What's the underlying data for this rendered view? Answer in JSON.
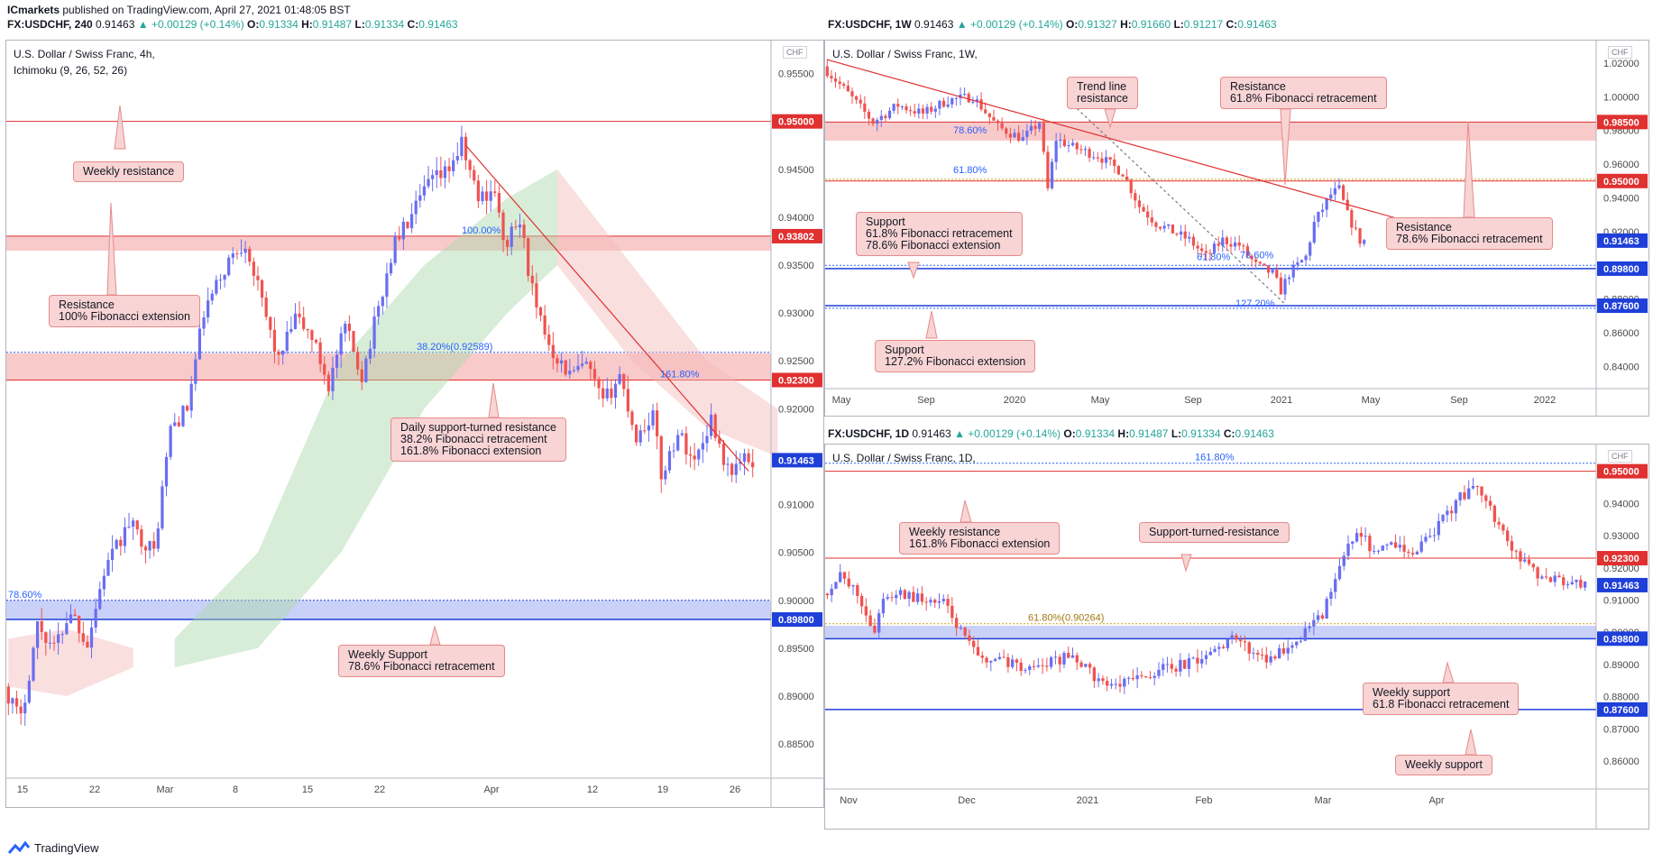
{
  "top_line": {
    "author": "ICmarkets",
    "text": "published on TradingView.com, April 27, 2021 01:48:05 BST"
  },
  "headers": [
    {
      "symbol": "FX:USDCHF, 240",
      "last": "0.91463",
      "change": "+0.00129 (+0.14%)",
      "o": "0.91334",
      "h": "0.91487",
      "l": "0.91334",
      "c": "0.91463"
    },
    {
      "symbol": "FX:USDCHF, 1W",
      "last": "0.91463",
      "change": "+0.00129 (+0.14%)",
      "o": "0.91327",
      "h": "0.91660",
      "l": "0.91217",
      "c": "0.91463"
    },
    {
      "symbol": "FX:USDCHF, 1D",
      "last": "0.91463",
      "change": "+0.00129 (+0.14%)",
      "o": "0.91334",
      "h": "0.91487",
      "l": "0.91334",
      "c": "0.91463"
    }
  ],
  "brand": "TradingView",
  "colors": {
    "bull": "#6a6ef0",
    "bear": "#ef5350",
    "resistance": "#e03030",
    "support": "#1f3fd9",
    "zone_red": "#f5b8b8",
    "zone_blue": "#b8c2f5"
  },
  "chart_data": [
    {
      "id": "h4",
      "type": "candlestick",
      "title": "U.S. Dollar / Swiss Franc, 4h,",
      "subtitle": "Ichimoku (9, 26, 52, 26)",
      "currency": "CHF",
      "ylim": [
        0.882,
        0.9575
      ],
      "x_ticks": [
        "15",
        "22",
        "Mar",
        "8",
        "15",
        "22",
        "Apr",
        "12",
        "19",
        "26"
      ],
      "y_ticks": [
        "0.95500",
        "0.95000",
        "0.94500",
        "0.94000",
        "0.93500",
        "0.93000",
        "0.92500",
        "0.92000",
        "0.91500",
        "0.91000",
        "0.90500",
        "0.90000",
        "0.89500",
        "0.89000",
        "0.88500"
      ],
      "y_tick_values": [
        0.955,
        0.95,
        0.945,
        0.94,
        0.935,
        0.93,
        0.925,
        0.92,
        0.915,
        0.91,
        0.905,
        0.9,
        0.895,
        0.89,
        0.885
      ],
      "price_labels": [
        {
          "text": "0.95000",
          "value": 0.95,
          "kind": "res"
        },
        {
          "text": "0.93802",
          "value": 0.93802,
          "kind": "res"
        },
        {
          "text": "0.92300",
          "value": 0.923,
          "kind": "res"
        },
        {
          "text": "0.91463",
          "value": 0.91463,
          "kind": "last"
        },
        {
          "text": "0.89800",
          "value": 0.898,
          "kind": "sup"
        }
      ],
      "fib_labels": [
        "100.00%",
        "38.20%(0.92589)",
        "161.80%",
        "78.60%"
      ],
      "callouts": [
        {
          "lines": [
            "Weekly resistance"
          ]
        },
        {
          "lines": [
            "Resistance",
            "100% Fibonacci extension"
          ]
        },
        {
          "lines": [
            "Daily support-turned resistance",
            "38.2% Fibonacci retracement",
            "161.8% Fibonacci extension"
          ]
        },
        {
          "lines": [
            "Weekly Support",
            "78.6% Fibonacci retracement"
          ]
        }
      ],
      "path": [
        [
          0,
          0.891
        ],
        [
          4,
          0.8875
        ],
        [
          8,
          0.8975
        ],
        [
          12,
          0.895
        ],
        [
          16,
          0.899
        ],
        [
          20,
          0.8955
        ],
        [
          24,
          0.903
        ],
        [
          30,
          0.908
        ],
        [
          36,
          0.905
        ],
        [
          40,
          0.918
        ],
        [
          44,
          0.92
        ],
        [
          48,
          0.93
        ],
        [
          54,
          0.9355
        ],
        [
          58,
          0.9375
        ],
        [
          62,
          0.931
        ],
        [
          66,
          0.925
        ],
        [
          70,
          0.9295
        ],
        [
          74,
          0.9275
        ],
        [
          78,
          0.9225
        ],
        [
          82,
          0.9285
        ],
        [
          86,
          0.9235
        ],
        [
          90,
          0.9305
        ],
        [
          94,
          0.9375
        ],
        [
          98,
          0.94
        ],
        [
          102,
          0.9435
        ],
        [
          106,
          0.9445
        ],
        [
          110,
          0.9475
        ],
        [
          114,
          0.942
        ],
        [
          118,
          0.943
        ],
        [
          120,
          0.937
        ],
        [
          124,
          0.9395
        ],
        [
          128,
          0.93
        ],
        [
          132,
          0.926
        ],
        [
          136,
          0.9235
        ],
        [
          140,
          0.9245
        ],
        [
          144,
          0.9205
        ],
        [
          148,
          0.9235
        ],
        [
          152,
          0.917
        ],
        [
          156,
          0.9195
        ],
        [
          158,
          0.913
        ],
        [
          162,
          0.9175
        ],
        [
          166,
          0.9145
        ],
        [
          170,
          0.919
        ],
        [
          174,
          0.9135
        ],
        [
          178,
          0.9146
        ]
      ],
      "n_candles": 180
    },
    {
      "id": "w1",
      "type": "candlestick",
      "title": "U.S. Dollar / Swiss Franc, 1W,",
      "currency": "CHF",
      "ylim": [
        0.83,
        1.028
      ],
      "x_ticks": [
        "May",
        "Sep",
        "2020",
        "May",
        "Sep",
        "2021",
        "May",
        "Sep",
        "2022"
      ],
      "y_ticks": [
        "1.02000",
        "1.00000",
        "0.98000",
        "0.96000",
        "0.94000",
        "0.92000",
        "0.90000",
        "0.88000",
        "0.86000",
        "0.84000"
      ],
      "y_tick_values": [
        1.02,
        1.0,
        0.98,
        0.96,
        0.94,
        0.92,
        0.9,
        0.88,
        0.86,
        0.84
      ],
      "price_labels": [
        {
          "text": "0.98500",
          "value": 0.985,
          "kind": "res"
        },
        {
          "text": "0.95000",
          "value": 0.95,
          "kind": "res"
        },
        {
          "text": "0.91463",
          "value": 0.91463,
          "kind": "last"
        },
        {
          "text": "0.89800",
          "value": 0.898,
          "kind": "sup"
        },
        {
          "text": "0.87600",
          "value": 0.876,
          "kind": "sup"
        }
      ],
      "fib_labels": [
        "78.60%",
        "61.80%",
        "61.80%",
        "78.60%",
        "127.20%"
      ],
      "callouts": [
        {
          "lines": [
            "Trend line",
            "resistance"
          ]
        },
        {
          "lines": [
            "Resistance",
            "61.8% Fibonacci retracement"
          ]
        },
        {
          "lines": [
            "Support",
            "61.8% Fibonacci retracement",
            "78.6% Fibonacci extension"
          ]
        },
        {
          "lines": [
            "Resistance",
            "78.6% Fibonacci retracement"
          ]
        },
        {
          "lines": [
            "Support",
            "127.2% Fibonacci extension"
          ]
        }
      ],
      "path": [
        [
          0,
          1.018
        ],
        [
          6,
          1.002
        ],
        [
          12,
          0.985
        ],
        [
          18,
          0.995
        ],
        [
          24,
          0.99
        ],
        [
          30,
          0.998
        ],
        [
          36,
          1.0
        ],
        [
          42,
          0.982
        ],
        [
          48,
          0.975
        ],
        [
          52,
          0.985
        ],
        [
          54,
          0.945
        ],
        [
          56,
          0.975
        ],
        [
          60,
          0.97
        ],
        [
          66,
          0.965
        ],
        [
          72,
          0.955
        ],
        [
          76,
          0.935
        ],
        [
          80,
          0.925
        ],
        [
          84,
          0.92
        ],
        [
          88,
          0.915
        ],
        [
          92,
          0.905
        ],
        [
          96,
          0.915
        ],
        [
          100,
          0.912
        ],
        [
          104,
          0.9
        ],
        [
          108,
          0.895
        ],
        [
          110,
          0.885
        ],
        [
          112,
          0.895
        ],
        [
          116,
          0.905
        ],
        [
          118,
          0.925
        ],
        [
          122,
          0.942
        ],
        [
          124,
          0.945
        ],
        [
          126,
          0.93
        ],
        [
          129,
          0.9146
        ]
      ],
      "n_candles": 130
    },
    {
      "id": "d1",
      "type": "candlestick",
      "title": "U.S. Dollar / Swiss Franc, 1D,",
      "currency": "CHF",
      "ylim": [
        0.853,
        0.9555
      ],
      "x_ticks": [
        "Nov",
        "Dec",
        "2021",
        "Feb",
        "Mar",
        "Apr"
      ],
      "y_ticks": [
        "0.95000",
        "0.94000",
        "0.93000",
        "0.92000",
        "0.91000",
        "0.90000",
        "0.89000",
        "0.88000",
        "0.87000",
        "0.86000"
      ],
      "y_tick_values": [
        0.95,
        0.94,
        0.93,
        0.92,
        0.91,
        0.9,
        0.89,
        0.88,
        0.87,
        0.86
      ],
      "price_labels": [
        {
          "text": "0.95000",
          "value": 0.95,
          "kind": "res"
        },
        {
          "text": "0.92300",
          "value": 0.923,
          "kind": "res"
        },
        {
          "text": "0.91463",
          "value": 0.91463,
          "kind": "last"
        },
        {
          "text": "0.89800",
          "value": 0.898,
          "kind": "sup"
        },
        {
          "text": "0.87600",
          "value": 0.876,
          "kind": "sup"
        }
      ],
      "fib_labels": [
        "161.80%",
        "61.80%(0.90264)"
      ],
      "callouts": [
        {
          "lines": [
            "Weekly resistance",
            "161.8% Fibonacci extension"
          ]
        },
        {
          "lines": [
            "Support-turned-resistance"
          ]
        },
        {
          "lines": [
            "Weekly support",
            "61.8 Fibonacci retracement"
          ]
        },
        {
          "lines": [
            "Weekly support"
          ]
        }
      ],
      "path": [
        [
          0,
          0.912
        ],
        [
          4,
          0.917
        ],
        [
          8,
          0.912
        ],
        [
          12,
          0.9
        ],
        [
          14,
          0.911
        ],
        [
          18,
          0.912
        ],
        [
          24,
          0.91
        ],
        [
          28,
          0.909
        ],
        [
          32,
          0.9
        ],
        [
          36,
          0.892
        ],
        [
          42,
          0.891
        ],
        [
          48,
          0.889
        ],
        [
          54,
          0.891
        ],
        [
          58,
          0.893
        ],
        [
          64,
          0.885
        ],
        [
          68,
          0.883
        ],
        [
          72,
          0.885
        ],
        [
          76,
          0.887
        ],
        [
          80,
          0.889
        ],
        [
          84,
          0.89
        ],
        [
          88,
          0.891
        ],
        [
          92,
          0.896
        ],
        [
          96,
          0.898
        ],
        [
          100,
          0.893
        ],
        [
          104,
          0.892
        ],
        [
          108,
          0.896
        ],
        [
          112,
          0.9
        ],
        [
          116,
          0.905
        ],
        [
          120,
          0.92
        ],
        [
          124,
          0.932
        ],
        [
          128,
          0.925
        ],
        [
          132,
          0.929
        ],
        [
          136,
          0.924
        ],
        [
          140,
          0.928
        ],
        [
          144,
          0.935
        ],
        [
          148,
          0.942
        ],
        [
          152,
          0.945
        ],
        [
          154,
          0.942
        ],
        [
          158,
          0.93
        ],
        [
          162,
          0.922
        ],
        [
          166,
          0.918
        ],
        [
          170,
          0.916
        ],
        [
          174,
          0.915
        ],
        [
          176,
          0.9146
        ]
      ],
      "n_candles": 177
    }
  ]
}
